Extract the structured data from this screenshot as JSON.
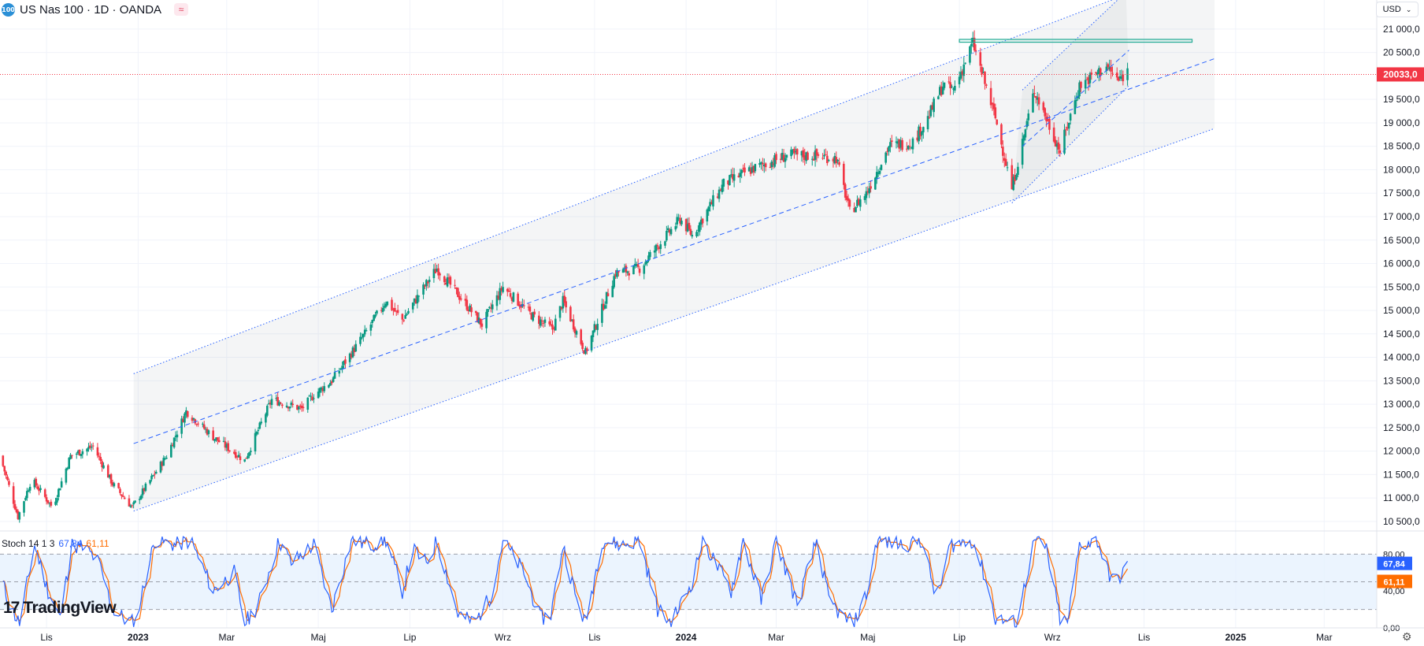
{
  "header": {
    "symbol_badge": "100",
    "symbol_title": "US Nas 100 · 1D · OANDA",
    "compare_icon": "≈"
  },
  "currency": {
    "label": "USD",
    "icon": "chevron-down-icon"
  },
  "logo": {
    "mark": "17",
    "text": "TradingView"
  },
  "stoch": {
    "name": "Stoch 14 1 3",
    "k_value": "67,84",
    "d_value": "61,11"
  },
  "colors": {
    "up": "#089981",
    "down": "#f23645",
    "line": "#2962ff",
    "price_line": "#f23645",
    "stoch_k": "#2962ff",
    "stoch_d": "#ff6d00",
    "band": "#e3effd",
    "resistance": "#22ab94"
  },
  "chart_data": [
    {
      "type": "candlestick",
      "title": "US Nas 100 · 1D · OANDA",
      "x_tick_labels": [
        "Lis",
        "2023",
        "Mar",
        "Maj",
        "Lip",
        "Wrz",
        "Lis",
        "2024",
        "Mar",
        "Maj",
        "Lip",
        "Wrz",
        "Lis",
        "2025",
        "Mar"
      ],
      "y_tick_labels": [
        "21 000,0",
        "20 500,0",
        "19 500,0",
        "19 000,0",
        "18 500,0",
        "18 000,0",
        "17 500,0",
        "17 000,0",
        "16 500,0",
        "16 000,0",
        "15 500,0",
        "15 000,0",
        "14 500,0",
        "14 000,0",
        "13 500,0",
        "13 000,0",
        "12 500,0",
        "12 000,0",
        "11 500,0",
        "11 000,0",
        "10 500,0"
      ],
      "ylim": [
        10330,
        21620
      ],
      "last_price": 20033.0,
      "last_price_label": "20033,0",
      "path_points": [
        [
          "2022-10-01",
          11900
        ],
        [
          "2022-10-13",
          10600
        ],
        [
          "2022-10-22",
          11400
        ],
        [
          "2022-11-05",
          10800
        ],
        [
          "2022-11-17",
          11900
        ],
        [
          "2022-12-02",
          12100
        ],
        [
          "2022-12-15",
          11300
        ],
        [
          "2022-12-28",
          10800
        ],
        [
          "2023-01-20",
          11900
        ],
        [
          "2023-02-02",
          12850
        ],
        [
          "2023-02-20",
          12300
        ],
        [
          "2023-03-13",
          11800
        ],
        [
          "2023-03-31",
          13100
        ],
        [
          "2023-04-20",
          12900
        ],
        [
          "2023-04-28",
          13200
        ],
        [
          "2023-05-10",
          13500
        ],
        [
          "2023-06-01",
          14500
        ],
        [
          "2023-06-15",
          15200
        ],
        [
          "2023-06-26",
          14800
        ],
        [
          "2023-07-19",
          15900
        ],
        [
          "2023-08-03",
          15300
        ],
        [
          "2023-08-18",
          14700
        ],
        [
          "2023-09-01",
          15500
        ],
        [
          "2023-09-20",
          14900
        ],
        [
          "2023-10-04",
          14600
        ],
        [
          "2023-10-11",
          15200
        ],
        [
          "2023-10-26",
          14100
        ],
        [
          "2023-11-15",
          15800
        ],
        [
          "2023-12-01",
          15900
        ],
        [
          "2023-12-28",
          16950
        ],
        [
          "2024-01-05",
          16600
        ],
        [
          "2024-01-26",
          17700
        ],
        [
          "2024-02-13",
          18000
        ],
        [
          "2024-03-08",
          18300
        ],
        [
          "2024-03-28",
          18300
        ],
        [
          "2024-04-10",
          18250
        ],
        [
          "2024-04-19",
          17100
        ],
        [
          "2024-04-30",
          17500
        ],
        [
          "2024-05-15",
          18500
        ],
        [
          "2024-05-31",
          18600
        ],
        [
          "2024-06-10",
          19100
        ],
        [
          "2024-06-20",
          19800
        ],
        [
          "2024-06-27",
          19700
        ],
        [
          "2024-07-10",
          20700
        ],
        [
          "2024-07-25",
          19100
        ],
        [
          "2024-08-05",
          17600
        ],
        [
          "2024-08-20",
          19700
        ],
        [
          "2024-09-06",
          18400
        ],
        [
          "2024-09-19",
          19800
        ],
        [
          "2024-10-07",
          20200
        ],
        [
          "2024-10-15",
          19900
        ],
        [
          "2024-10-21",
          20100
        ]
      ],
      "annotations": {
        "regression_channel": {
          "upper": [
            [
              "2022-12-29",
              13650
            ],
            [
              "2024-10-22",
              21760
            ]
          ],
          "middle": [
            [
              "2022-12-29",
              12160
            ],
            [
              "2024-12-18",
              20370
            ]
          ],
          "lower": [
            [
              "2022-12-29",
              10720
            ],
            [
              "2024-12-18",
              18880
            ]
          ]
        },
        "small_channel": {
          "upper": [
            [
              "2024-08-12",
              19700
            ],
            [
              "2024-10-20",
              21790
            ]
          ],
          "middle": [
            [
              "2024-08-12",
              18500
            ],
            [
              "2024-10-22",
              20550
            ]
          ],
          "lower": [
            [
              "2024-08-05",
              17290
            ],
            [
              "2024-10-22",
              19800
            ]
          ]
        },
        "resistance_zone": {
          "from": [
            "2024-07-01",
            20780
          ],
          "to": [
            "2024-12-03",
            20720
          ]
        }
      }
    },
    {
      "type": "line",
      "title": "Stoch 14 1 3",
      "y_tick_labels": [
        "80,00",
        "40,00",
        "0,00"
      ],
      "ylim": [
        0,
        100
      ],
      "band": [
        20,
        80
      ],
      "series": [
        {
          "name": "%K",
          "last": 67.84
        },
        {
          "name": "%D",
          "last": 61.11
        }
      ],
      "path_points": [
        [
          "2022-10-01",
          60
        ],
        [
          "2022-10-07",
          25
        ],
        [
          "2022-10-14",
          5
        ],
        [
          "2022-10-24",
          90
        ],
        [
          "2022-11-02",
          40
        ],
        [
          "2022-11-10",
          10
        ],
        [
          "2022-11-18",
          90
        ],
        [
          "2022-11-28",
          85
        ],
        [
          "2022-12-06",
          70
        ],
        [
          "2022-12-15",
          20
        ],
        [
          "2022-12-23",
          10
        ],
        [
          "2022-12-30",
          5
        ],
        [
          "2023-01-12",
          95
        ],
        [
          "2023-01-26",
          90
        ],
        [
          "2023-02-05",
          95
        ],
        [
          "2023-02-20",
          40
        ],
        [
          "2023-03-06",
          60
        ],
        [
          "2023-03-13",
          5
        ],
        [
          "2023-03-22",
          25
        ],
        [
          "2023-04-05",
          95
        ],
        [
          "2023-04-13",
          70
        ],
        [
          "2023-04-28",
          90
        ],
        [
          "2023-05-10",
          20
        ],
        [
          "2023-05-23",
          95
        ],
        [
          "2023-06-05",
          90
        ],
        [
          "2023-06-15",
          95
        ],
        [
          "2023-06-26",
          40
        ],
        [
          "2023-07-03",
          85
        ],
        [
          "2023-07-12",
          70
        ],
        [
          "2023-07-19",
          95
        ],
        [
          "2023-08-02",
          15
        ],
        [
          "2023-08-13",
          5
        ],
        [
          "2023-08-24",
          35
        ],
        [
          "2023-09-01",
          95
        ],
        [
          "2023-09-15",
          60
        ],
        [
          "2023-09-26",
          10
        ],
        [
          "2023-10-03",
          15
        ],
        [
          "2023-10-11",
          90
        ],
        [
          "2023-10-20",
          30
        ],
        [
          "2023-10-26",
          5
        ],
        [
          "2023-11-06",
          95
        ],
        [
          "2023-11-20",
          90
        ],
        [
          "2023-12-01",
          95
        ],
        [
          "2023-12-13",
          20
        ],
        [
          "2023-12-22",
          5
        ],
        [
          "2024-01-05",
          50
        ],
        [
          "2024-01-12",
          95
        ],
        [
          "2024-01-31",
          40
        ],
        [
          "2024-02-08",
          95
        ],
        [
          "2024-02-20",
          30
        ],
        [
          "2024-03-01",
          95
        ],
        [
          "2024-03-15",
          25
        ],
        [
          "2024-03-28",
          95
        ],
        [
          "2024-04-05",
          30
        ],
        [
          "2024-04-15",
          10
        ],
        [
          "2024-04-22",
          5
        ],
        [
          "2024-05-01",
          40
        ],
        [
          "2024-05-07",
          95
        ],
        [
          "2024-05-25",
          90
        ],
        [
          "2024-06-06",
          95
        ],
        [
          "2024-06-16",
          30
        ],
        [
          "2024-06-25",
          90
        ],
        [
          "2024-07-10",
          95
        ],
        [
          "2024-07-19",
          50
        ],
        [
          "2024-07-25",
          10
        ],
        [
          "2024-08-08",
          5
        ],
        [
          "2024-08-20",
          95
        ],
        [
          "2024-08-28",
          85
        ],
        [
          "2024-09-06",
          10
        ],
        [
          "2024-09-11",
          5
        ],
        [
          "2024-09-19",
          90
        ],
        [
          "2024-10-01",
          95
        ],
        [
          "2024-10-08",
          60
        ],
        [
          "2024-10-14",
          50
        ],
        [
          "2024-10-21",
          68
        ]
      ]
    }
  ]
}
